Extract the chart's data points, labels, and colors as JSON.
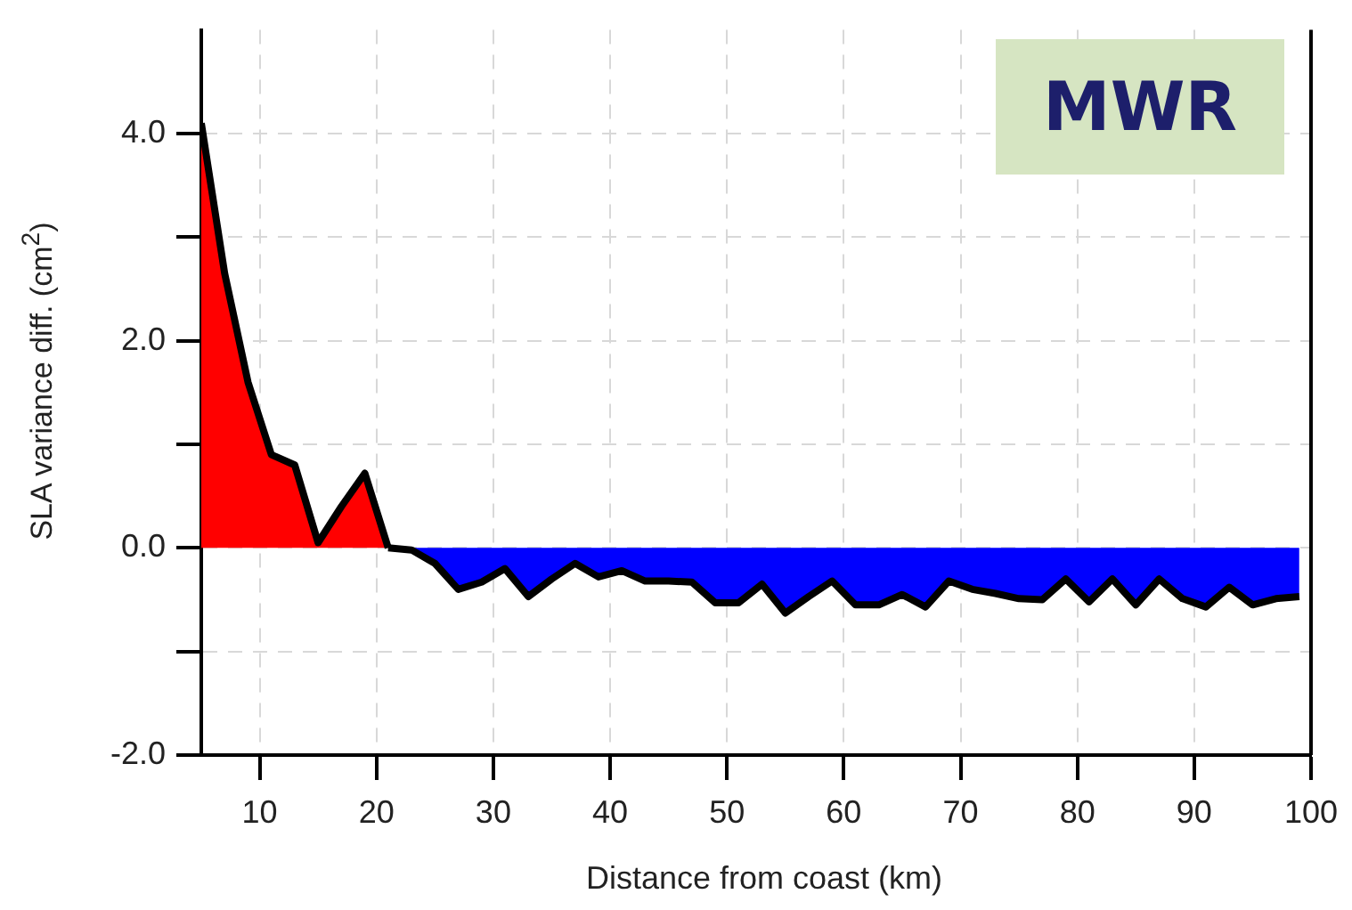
{
  "chart_data": {
    "type": "area",
    "xlabel": "Distance from coast (km)",
    "ylabel": "SLA variance diff. (cm$^{2}$)",
    "annotations": [
      "MWR"
    ],
    "series": [
      {
        "color": "#ff0000",
        "x": [
          5,
          7,
          9,
          11,
          13,
          15,
          17,
          19,
          21
        ],
        "values": [
          4.1,
          2.65,
          1.6,
          0.9,
          0.8,
          0.05,
          0.4,
          0.72,
          0.0
        ]
      },
      {
        "color": "#0000ff",
        "x": [
          21,
          23,
          25,
          27,
          29,
          31,
          33,
          35,
          37,
          39,
          41,
          43,
          45,
          47,
          49,
          51,
          53,
          55,
          57,
          59,
          61,
          63,
          65,
          67,
          69,
          71,
          73,
          75,
          77,
          79,
          81,
          83,
          85,
          87,
          89,
          91,
          93,
          95,
          97,
          99
        ],
        "values": [
          0.0,
          -0.02,
          -0.15,
          -0.4,
          -0.33,
          -0.2,
          -0.47,
          -0.3,
          -0.15,
          -0.28,
          -0.22,
          -0.32,
          -0.32,
          -0.33,
          -0.53,
          -0.53,
          -0.35,
          -0.63,
          -0.47,
          -0.32,
          -0.55,
          -0.55,
          -0.45,
          -0.57,
          -0.32,
          -0.4,
          -0.44,
          -0.49,
          -0.5,
          -0.3,
          -0.52,
          -0.3,
          -0.55,
          -0.3,
          -0.49,
          -0.57,
          -0.38,
          -0.55,
          -0.49,
          -0.47
        ]
      }
    ],
    "xlim": [
      5,
      100
    ],
    "xticks": [
      10,
      20,
      30,
      40,
      50,
      60,
      70,
      80,
      90,
      100
    ],
    "ylim": [
      -2,
      5
    ],
    "yticks": [
      {
        "value": -2,
        "label": "-2.0"
      },
      {
        "value": -1,
        "label": null
      },
      {
        "value": 0,
        "label": "0.0"
      },
      {
        "value": 1,
        "label": null
      },
      {
        "value": 2,
        "label": "2.0"
      },
      {
        "value": 3,
        "label": null
      },
      {
        "value": 4,
        "label": "4.0"
      }
    ],
    "grid": true,
    "legend": false,
    "marker": "none",
    "line_style": "solid"
  }
}
